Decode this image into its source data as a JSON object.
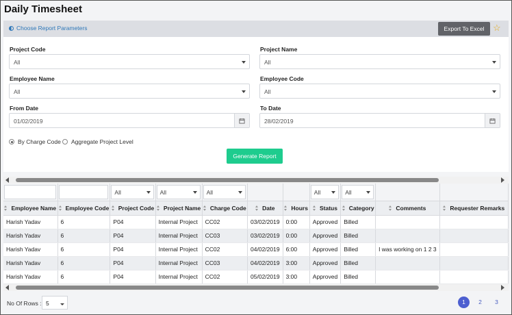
{
  "page_title": "Daily Timesheet",
  "params_link": "Choose Report Parameters",
  "export_label": "Export To Excel",
  "star_icon": "star-icon",
  "colors": {
    "accent_green": "#1ecc8e",
    "export_gray": "#616368",
    "pager_blue": "#4d5fd0",
    "star": "#e5a813"
  },
  "form": {
    "project_code": {
      "label": "Project Code",
      "value": "All"
    },
    "project_name": {
      "label": "Project Name",
      "value": "All"
    },
    "employee_name": {
      "label": "Employee Name",
      "value": "All"
    },
    "employee_code": {
      "label": "Employee Code",
      "value": "All"
    },
    "from_date": {
      "label": "From Date",
      "value": "01/02/2019"
    },
    "to_date": {
      "label": "To Date",
      "value": "28/02/2019"
    },
    "radio_charge": "By Charge Code",
    "radio_aggregate": "Aggregate Project Level",
    "selected_radio": "By Charge Code",
    "generate_label": "Generate Report"
  },
  "grid": {
    "filters": [
      "",
      "",
      "All",
      "All",
      "All",
      "",
      "",
      "All",
      "All",
      "",
      ""
    ],
    "columns": [
      "Employee Name",
      "Employee Code",
      "Project Code",
      "Project Name",
      "Charge Code",
      "Date",
      "Hours",
      "Status",
      "Category",
      "Comments",
      "Requester Remarks"
    ],
    "rows": [
      [
        "Harish Yadav",
        "6",
        "P04",
        "Internal Project",
        "CC02",
        "03/02/2019",
        "0:00",
        "Approved",
        "Billed",
        "",
        ""
      ],
      [
        "Harish Yadav",
        "6",
        "P04",
        "Internal Project",
        "CC03",
        "03/02/2019",
        "0:00",
        "Approved",
        "Billed",
        "",
        ""
      ],
      [
        "Harish Yadav",
        "6",
        "P04",
        "Internal Project",
        "CC02",
        "04/02/2019",
        "6:00",
        "Approved",
        "Billed",
        "I was working on 1 2 3",
        ""
      ],
      [
        "Harish Yadav",
        "6",
        "P04",
        "Internal Project",
        "CC03",
        "04/02/2019",
        "3:00",
        "Approved",
        "Billed",
        "",
        ""
      ],
      [
        "Harish Yadav",
        "6",
        "P04",
        "Internal Project",
        "CC02",
        "05/02/2019",
        "3:00",
        "Approved",
        "Billed",
        "",
        ""
      ]
    ]
  },
  "footer": {
    "rows_label": "No Of Rows :",
    "rows_value": "5",
    "pages": [
      "1",
      "2",
      "3"
    ],
    "current_page": "1"
  }
}
